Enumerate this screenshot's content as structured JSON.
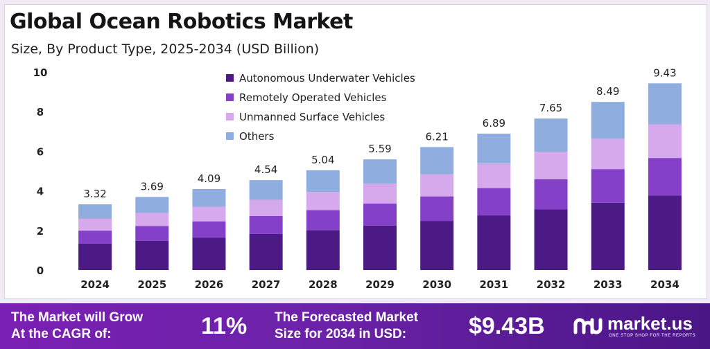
{
  "header": {
    "title": "Global Ocean Robotics Market",
    "subtitle": "Size, By Product Type, 2025-2034 (USD Billion)"
  },
  "chart_data": {
    "type": "bar",
    "stacked": true,
    "categories": [
      "2024",
      "2025",
      "2026",
      "2027",
      "2028",
      "2029",
      "2030",
      "2031",
      "2032",
      "2033",
      "2034"
    ],
    "totals": [
      3.32,
      3.69,
      4.09,
      4.54,
      5.04,
      5.59,
      6.21,
      6.89,
      7.65,
      8.49,
      9.43
    ],
    "total_labels": [
      "3.32",
      "3.69",
      "4.09",
      "4.54",
      "5.04",
      "5.59",
      "6.21",
      "6.89",
      "7.65",
      "8.49",
      "9.43"
    ],
    "series": [
      {
        "name": "Autonomous Underwater Vehicles",
        "color": "#4b1a85",
        "values": [
          1.33,
          1.48,
          1.64,
          1.82,
          2.02,
          2.24,
          2.48,
          2.76,
          3.06,
          3.4,
          3.77
        ]
      },
      {
        "name": "Remotely Operated Vehicles",
        "color": "#8540c9",
        "values": [
          0.66,
          0.74,
          0.82,
          0.91,
          1.01,
          1.12,
          1.24,
          1.38,
          1.53,
          1.7,
          1.89
        ]
      },
      {
        "name": "Unmanned Surface Vehicles",
        "color": "#d6a9ec",
        "values": [
          0.6,
          0.66,
          0.74,
          0.82,
          0.91,
          1.01,
          1.12,
          1.24,
          1.38,
          1.53,
          1.7
        ]
      },
      {
        "name": "Others",
        "color": "#8fadde",
        "values": [
          0.73,
          0.81,
          0.89,
          0.99,
          1.1,
          1.22,
          1.37,
          1.51,
          1.68,
          1.86,
          2.07
        ]
      }
    ],
    "yticks": [
      "0",
      "2",
      "4",
      "6",
      "8",
      "10"
    ],
    "ylim": [
      0,
      10
    ],
    "legend_position": "top-center",
    "grid": false
  },
  "footer": {
    "cagr_text_line1": "The Market will Grow",
    "cagr_text_line2": "At the CAGR of:",
    "cagr_value": "11%",
    "forecast_text_line1": "The Forecasted Market",
    "forecast_text_line2": "Size for 2034 in USD:",
    "forecast_value": "$9.43B",
    "brand_name": "market.us",
    "brand_tagline": "ONE STOP SHOP FOR THE REPORTS"
  }
}
